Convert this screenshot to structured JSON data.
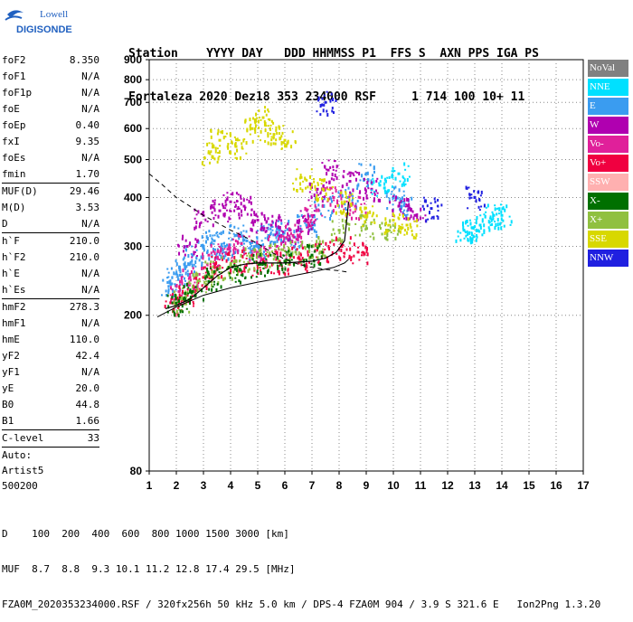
{
  "logo": {
    "brand": "Lowell",
    "product": "DIGISONDE"
  },
  "header": {
    "line1": "Station    YYYY DAY   DDD HHMMSS P1  FFS S  AXN PPS IGA PS",
    "line2": "Fortaleza 2020 Dez18 353 234000 RSF     1 714 100 10+ 11"
  },
  "params": [
    [
      {
        "name": "foF2",
        "value": "8.350"
      },
      {
        "name": "foF1",
        "value": "N/A"
      },
      {
        "name": "foF1p",
        "value": "N/A"
      },
      {
        "name": "foE",
        "value": "N/A"
      },
      {
        "name": "foEp",
        "value": "0.40"
      },
      {
        "name": "fxI",
        "value": "9.35"
      },
      {
        "name": "foEs",
        "value": "N/A"
      },
      {
        "name": "fmin",
        "value": "1.70"
      }
    ],
    [
      {
        "name": "MUF(D)",
        "value": "29.46"
      },
      {
        "name": "M(D)",
        "value": "3.53"
      },
      {
        "name": "D",
        "value": "N/A"
      }
    ],
    [
      {
        "name": "h`F",
        "value": "210.0"
      },
      {
        "name": "h`F2",
        "value": "210.0"
      },
      {
        "name": "h`E",
        "value": "N/A"
      },
      {
        "name": "h`Es",
        "value": "N/A"
      }
    ],
    [
      {
        "name": "hmF2",
        "value": "278.3"
      },
      {
        "name": "hmF1",
        "value": "N/A"
      },
      {
        "name": "hmE",
        "value": "110.0"
      },
      {
        "name": "yF2",
        "value": "42.4"
      },
      {
        "name": "yF1",
        "value": "N/A"
      },
      {
        "name": "yE",
        "value": "20.0"
      },
      {
        "name": "B0",
        "value": "44.8"
      },
      {
        "name": "B1",
        "value": "1.66"
      }
    ],
    [
      {
        "name": "C-level",
        "value": "33"
      }
    ]
  ],
  "auto": {
    "line1": "Auto:",
    "line2": "Artist5",
    "line3": "500200"
  },
  "legend": [
    {
      "label": "NoVal",
      "color": "#808080"
    },
    {
      "label": "NNE",
      "color": "#00e0ff"
    },
    {
      "label": "E",
      "color": "#3a9cf0"
    },
    {
      "label": "W",
      "color": "#b000b0"
    },
    {
      "label": "Vo-",
      "color": "#e0209a"
    },
    {
      "label": "Vo+",
      "color": "#f00040"
    },
    {
      "label": "SSW",
      "color": "#ffb0b0"
    },
    {
      "label": "X-",
      "color": "#007000"
    },
    {
      "label": "X+",
      "color": "#90c040"
    },
    {
      "label": "SSE",
      "color": "#d8d800"
    },
    {
      "label": "NNW",
      "color": "#2020e0"
    }
  ],
  "bottom": {
    "line1": "D    100  200  400  600  800 1000 1500 3000 [km]",
    "line2": "MUF  8.7  8.8  9.3 10.1 11.2 12.8 17.4 29.5 [MHz]",
    "line3": "FZA0M_2020353234000.RSF / 320fx256h 50 kHz 5.0 km / DPS-4 FZA0M 904 / 3.9 S 321.6 E   Ion2Png 1.3.20"
  },
  "chart_data": {
    "type": "scatter",
    "title": "",
    "xlabel": "",
    "ylabel": "",
    "xlim": [
      1,
      17
    ],
    "ylim": [
      80,
      900
    ],
    "x_ticks": [
      "1",
      "2",
      "3",
      "4",
      "5",
      "6",
      "7",
      "8",
      "9",
      "10",
      "11",
      "12",
      "13",
      "14",
      "15",
      "16",
      "17"
    ],
    "y_ticks": [
      "80",
      "200",
      "300",
      "400",
      "500",
      "600",
      "700",
      "800",
      "900"
    ],
    "y_tick_values": [
      80,
      200,
      300,
      400,
      500,
      600,
      700,
      800,
      900
    ],
    "y_scale": "log",
    "series": [
      {
        "name": "E",
        "color": "#3a9cf0",
        "points": [
          [
            1.8,
            240
          ],
          [
            2.0,
            255
          ],
          [
            2.3,
            270
          ],
          [
            2.6,
            285
          ],
          [
            3.0,
            300
          ],
          [
            3.4,
            310
          ],
          [
            3.8,
            300
          ],
          [
            4.2,
            320
          ],
          [
            4.6,
            310
          ],
          [
            5.0,
            300
          ],
          [
            5.4,
            320
          ],
          [
            5.8,
            330
          ],
          [
            6.2,
            310
          ],
          [
            6.8,
            340
          ],
          [
            7.4,
            380
          ],
          [
            8.3,
            400
          ],
          [
            9.0,
            460
          ],
          [
            10.0,
            400
          ],
          [
            10.3,
            380
          ]
        ]
      },
      {
        "name": "W",
        "color": "#b000b0",
        "points": [
          [
            2.4,
            300
          ],
          [
            3.0,
            360
          ],
          [
            3.6,
            370
          ],
          [
            4.0,
            390
          ],
          [
            4.5,
            380
          ],
          [
            5.0,
            350
          ],
          [
            5.5,
            340
          ],
          [
            6.2,
            330
          ],
          [
            6.8,
            350
          ],
          [
            7.2,
            420
          ],
          [
            7.6,
            470
          ],
          [
            8.4,
            440
          ],
          [
            9.2,
            420
          ],
          [
            10.2,
            380
          ],
          [
            10.8,
            360
          ]
        ]
      },
      {
        "name": "Vo-",
        "color": "#e0209a",
        "points": [
          [
            2.1,
            230
          ],
          [
            2.5,
            250
          ],
          [
            3.2,
            285
          ],
          [
            3.9,
            295
          ],
          [
            4.4,
            305
          ],
          [
            5.0,
            290
          ],
          [
            5.7,
            300
          ],
          [
            6.3,
            320
          ],
          [
            7.0,
            360
          ],
          [
            7.8,
            400
          ],
          [
            8.6,
            380
          ]
        ]
      },
      {
        "name": "Vo+",
        "color": "#f00040",
        "points": [
          [
            1.9,
            215
          ],
          [
            2.4,
            225
          ],
          [
            3.0,
            250
          ],
          [
            3.5,
            265
          ],
          [
            4.2,
            275
          ],
          [
            5.0,
            270
          ],
          [
            5.8,
            275
          ],
          [
            6.5,
            280
          ],
          [
            7.4,
            290
          ],
          [
            8.1,
            300
          ],
          [
            8.7,
            290
          ]
        ]
      },
      {
        "name": "X+",
        "color": "#90c040",
        "points": [
          [
            2.2,
            220
          ],
          [
            2.8,
            245
          ],
          [
            3.4,
            258
          ],
          [
            4.0,
            268
          ],
          [
            4.8,
            280
          ],
          [
            5.6,
            285
          ],
          [
            6.4,
            290
          ],
          [
            7.2,
            300
          ],
          [
            8.0,
            330
          ],
          [
            8.9,
            340
          ],
          [
            9.8,
            330
          ]
        ]
      },
      {
        "name": "SSE",
        "color": "#d8d800",
        "points": [
          [
            3.2,
            520
          ],
          [
            3.6,
            560
          ],
          [
            4.2,
            540
          ],
          [
            4.8,
            600
          ],
          [
            5.2,
            640
          ],
          [
            5.6,
            580
          ],
          [
            6.0,
            560
          ],
          [
            6.6,
            450
          ],
          [
            7.4,
            420
          ],
          [
            8.2,
            390
          ],
          [
            9.0,
            360
          ],
          [
            10.0,
            350
          ],
          [
            10.5,
            340
          ]
        ]
      },
      {
        "name": "NNE",
        "color": "#00e0ff",
        "points": [
          [
            12.6,
            330
          ],
          [
            12.9,
            335
          ],
          [
            13.2,
            340
          ],
          [
            13.7,
            360
          ],
          [
            14.0,
            360
          ],
          [
            9.5,
            430
          ],
          [
            10.2,
            460
          ]
        ]
      },
      {
        "name": "X-",
        "color": "#007000",
        "points": [
          [
            2.0,
            215
          ],
          [
            2.6,
            230
          ],
          [
            3.3,
            250
          ],
          [
            4.2,
            262
          ],
          [
            5.1,
            270
          ],
          [
            6.0,
            275
          ],
          [
            7.0,
            285
          ]
        ]
      },
      {
        "name": "NNW",
        "color": "#2020e0",
        "points": [
          [
            7.5,
            700
          ],
          [
            13.0,
            400
          ],
          [
            11.4,
            375
          ]
        ]
      }
    ],
    "profile": [
      [
        1.3,
        198
      ],
      [
        2.0,
        210
      ],
      [
        3.0,
        225
      ],
      [
        4.0,
        235
      ],
      [
        5.0,
        243
      ],
      [
        6.0,
        250
      ],
      [
        7.0,
        258
      ],
      [
        7.8,
        265
      ],
      [
        8.2,
        272
      ],
      [
        8.35,
        278
      ]
    ],
    "trace": [
      [
        1.6,
        208
      ],
      [
        2.0,
        212
      ],
      [
        2.5,
        220
      ],
      [
        3.0,
        235
      ],
      [
        3.5,
        252
      ],
      [
        4.0,
        265
      ],
      [
        4.5,
        270
      ],
      [
        5.0,
        272
      ],
      [
        6.0,
        272
      ],
      [
        7.0,
        275
      ],
      [
        7.5,
        280
      ],
      [
        7.9,
        290
      ],
      [
        8.2,
        310
      ],
      [
        8.3,
        360
      ],
      [
        8.35,
        390
      ]
    ],
    "dashed_curve": [
      [
        1.0,
        460
      ],
      [
        1.5,
        430
      ],
      [
        2.0,
        400
      ],
      [
        2.5,
        380
      ],
      [
        3.0,
        360
      ],
      [
        3.5,
        345
      ],
      [
        4.0,
        330
      ],
      [
        4.5,
        318
      ],
      [
        5.0,
        305
      ],
      [
        5.5,
        290
      ],
      [
        6.0,
        278
      ],
      [
        6.5,
        270
      ],
      [
        7.0,
        265
      ],
      [
        7.5,
        262
      ],
      [
        8.0,
        260
      ],
      [
        8.3,
        258
      ]
    ]
  }
}
